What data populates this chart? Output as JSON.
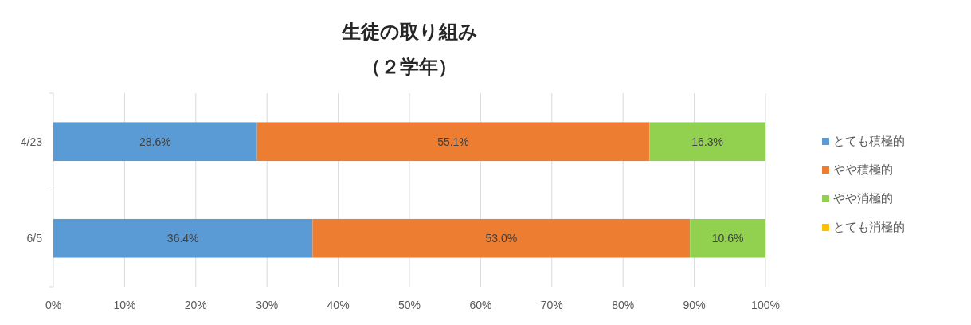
{
  "chart_data": {
    "type": "bar",
    "orientation": "horizontal",
    "stacked": true,
    "title": "生徒の取り組み",
    "subtitle": "（２学年）",
    "categories": [
      "4/23",
      "6/5"
    ],
    "series": [
      {
        "name": "とても積極的",
        "color": "#5b9bd5",
        "values": [
          28.6,
          36.4
        ],
        "value_labels": [
          "28.6%",
          "36.4%"
        ]
      },
      {
        "name": "やや積極的",
        "color": "#ed7d31",
        "values": [
          55.1,
          53.0
        ],
        "value_labels": [
          "55.1%",
          "53.0%"
        ]
      },
      {
        "name": "やや消極的",
        "color": "#92d050",
        "values": [
          16.3,
          10.6
        ],
        "value_labels": [
          "16.3%",
          "10.6%"
        ]
      },
      {
        "name": "とても消極的",
        "color": "#ffc000",
        "values": [
          0,
          0
        ],
        "value_labels": [
          null,
          null
        ]
      }
    ],
    "xlim": [
      0,
      100
    ],
    "xticks": [
      {
        "value": 0,
        "label": "0%"
      },
      {
        "value": 10,
        "label": "10%"
      },
      {
        "value": 20,
        "label": "20%"
      },
      {
        "value": 30,
        "label": "30%"
      },
      {
        "value": 40,
        "label": "40%"
      },
      {
        "value": 50,
        "label": "50%"
      },
      {
        "value": 60,
        "label": "60%"
      },
      {
        "value": 70,
        "label": "70%"
      },
      {
        "value": 80,
        "label": "80%"
      },
      {
        "value": 90,
        "label": "90%"
      },
      {
        "value": 100,
        "label": "100%"
      }
    ],
    "grid": "x",
    "legend": "right"
  }
}
